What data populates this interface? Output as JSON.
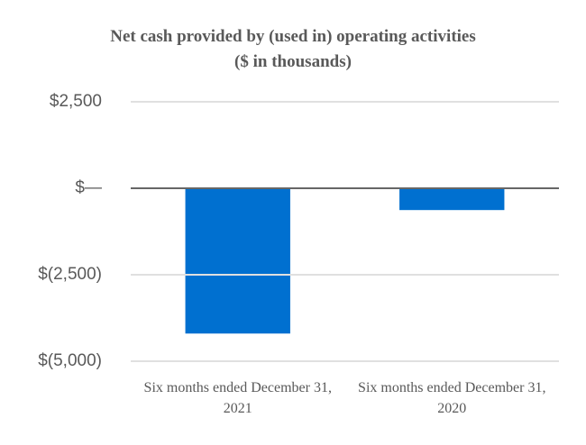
{
  "chart_data": {
    "type": "bar",
    "title": "Net cash provided by (used in) operating activities",
    "subtitle": "($ in thousands)",
    "categories": [
      "Six months ended December 31, 2021",
      "Six months ended December 31, 2020"
    ],
    "values": [
      -4200,
      -630
    ],
    "color": "#0070d0",
    "ylim": [
      -5000,
      2500
    ],
    "yticks": [
      {
        "value": 2500,
        "label": "$2,500"
      },
      {
        "value": 0,
        "label": "$—"
      },
      {
        "value": -2500,
        "label": "$(2,500)"
      },
      {
        "value": -5000,
        "label": "$(5,000)"
      }
    ],
    "grid": true
  }
}
